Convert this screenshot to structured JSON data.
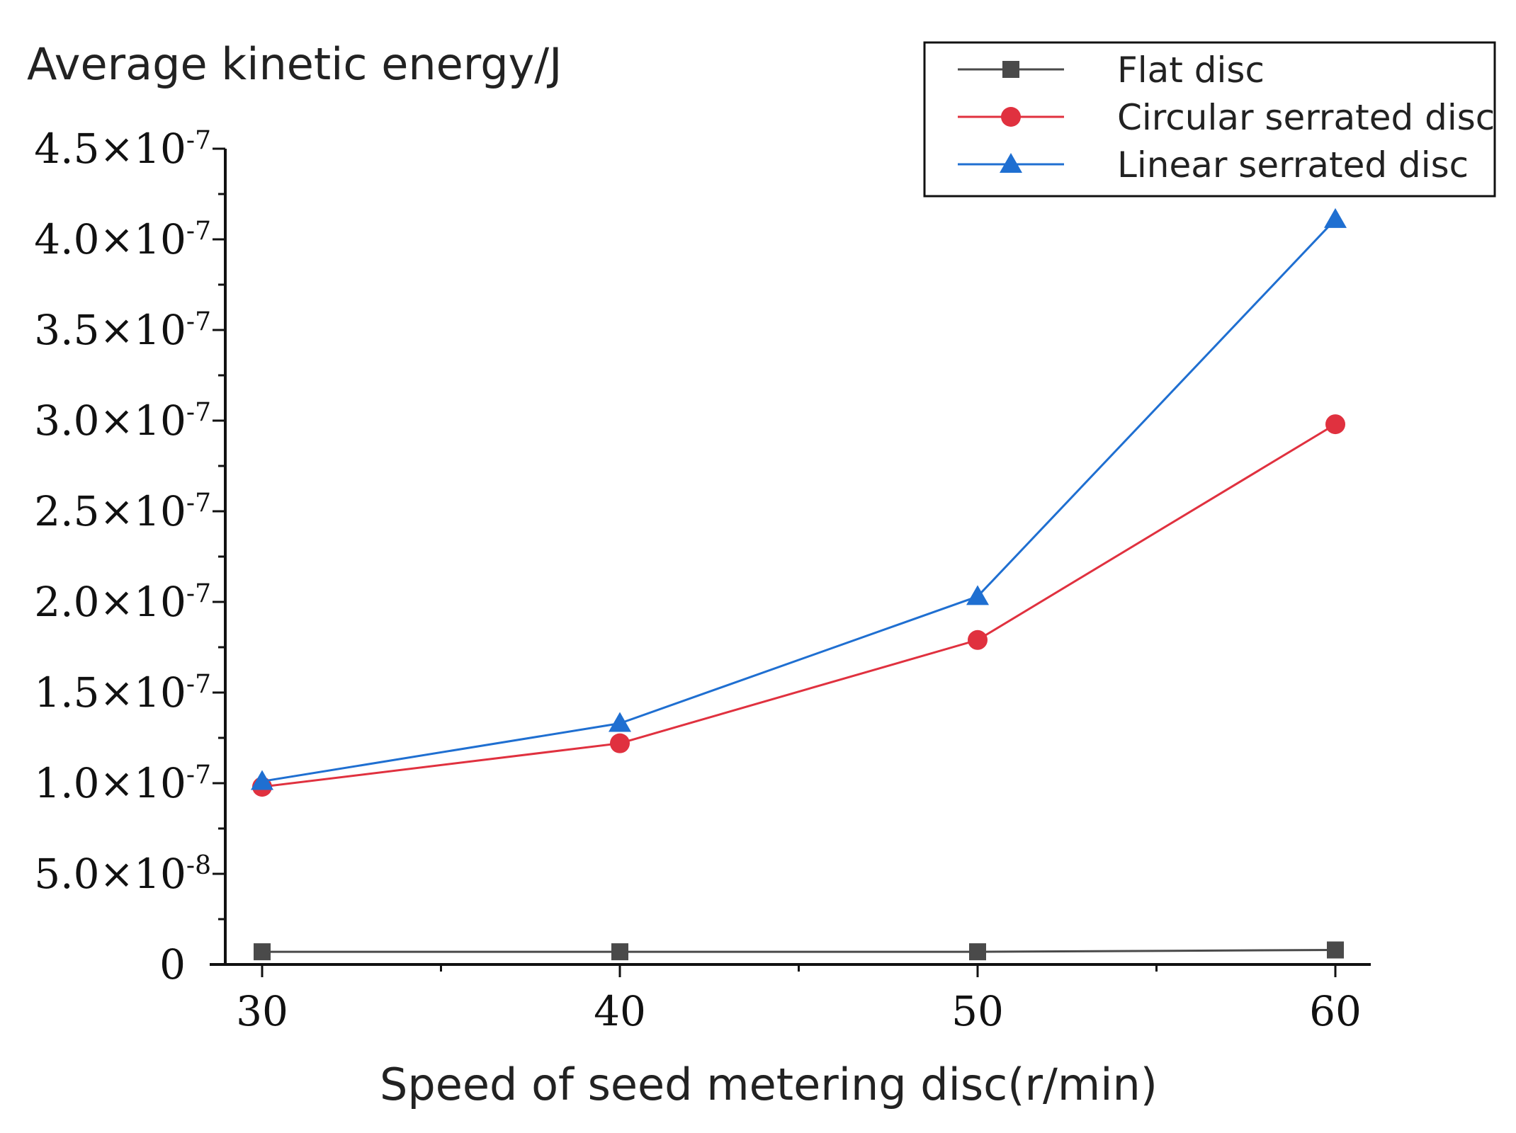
{
  "chart_data": {
    "type": "line",
    "ylabel": "Average kinetic energy/J",
    "xlabel": "Speed of seed metering disc(r/min)",
    "x": [
      30,
      40,
      50,
      60
    ],
    "ylim": [
      0,
      4.5e-07
    ],
    "y_ticks": [
      {
        "value": 0,
        "mantissa": "0",
        "exp": ""
      },
      {
        "value": 5e-08,
        "mantissa": "5.0×10",
        "exp": "-8"
      },
      {
        "value": 1e-07,
        "mantissa": "1.0×10",
        "exp": "-7"
      },
      {
        "value": 1.5e-07,
        "mantissa": "1.5×10",
        "exp": "-7"
      },
      {
        "value": 2e-07,
        "mantissa": "2.0×10",
        "exp": "-7"
      },
      {
        "value": 2.5e-07,
        "mantissa": "2.5×10",
        "exp": "-7"
      },
      {
        "value": 3e-07,
        "mantissa": "3.0×10",
        "exp": "-7"
      },
      {
        "value": 3.5e-07,
        "mantissa": "3.5×10",
        "exp": "-7"
      },
      {
        "value": 4e-07,
        "mantissa": "4.0×10",
        "exp": "-7"
      },
      {
        "value": 4.5e-07,
        "mantissa": "4.5×10",
        "exp": "-7"
      }
    ],
    "x_ticks": [
      "30",
      "40",
      "50",
      "60"
    ],
    "legend_position": "top-right",
    "grid": false,
    "series": [
      {
        "name": "Flat disc",
        "marker": "square",
        "color": "#4a4a4a",
        "values": [
          7e-09,
          7e-09,
          7e-09,
          8e-09
        ]
      },
      {
        "name": "Circular serrated disc",
        "marker": "circle",
        "color": "#e0313f",
        "values": [
          9.8e-08,
          1.22e-07,
          1.79e-07,
          2.98e-07
        ]
      },
      {
        "name": "Linear serrated disc",
        "marker": "triangle",
        "color": "#1f6fd1",
        "values": [
          1.01e-07,
          1.33e-07,
          2.03e-07,
          4.11e-07
        ]
      }
    ]
  }
}
